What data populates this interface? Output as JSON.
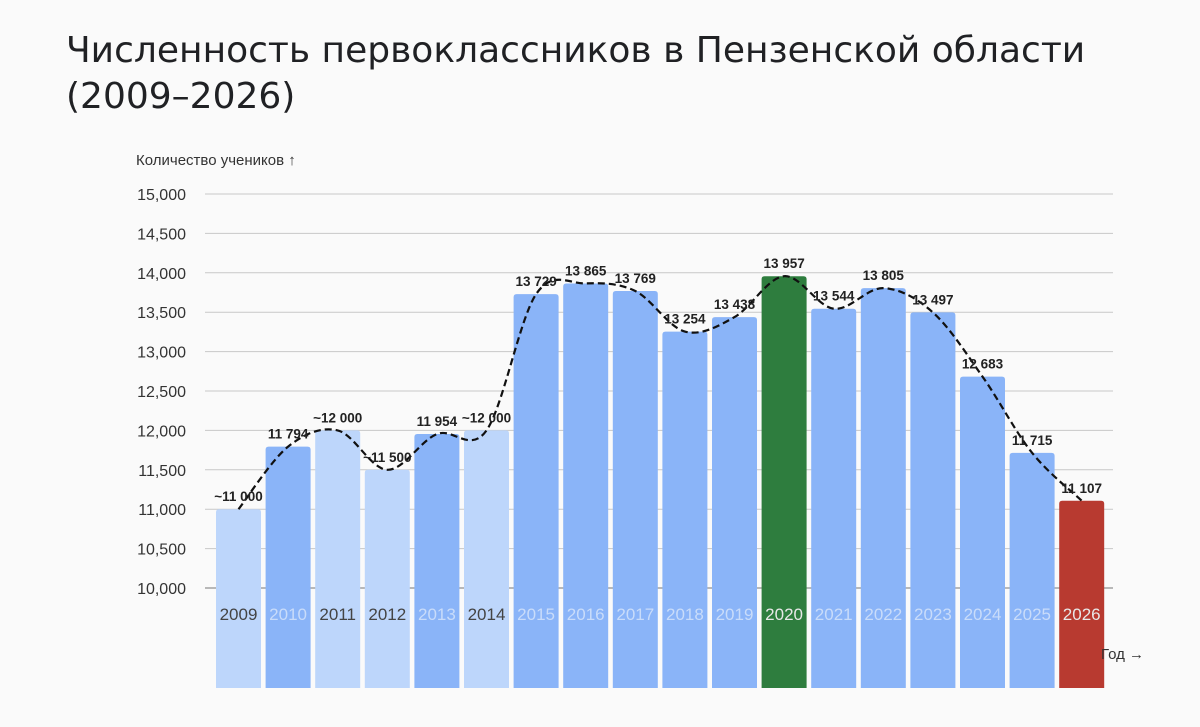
{
  "chart_data": {
    "type": "bar",
    "title": "Численность первоклассников в Пензенской области (2009–2026)",
    "ylabel": "Количество учеников ↑",
    "xlabel": "Год →",
    "ylim": [
      10000,
      15000
    ],
    "yticks": [
      "10,000",
      "10,500",
      "11,000",
      "11,500",
      "12,000",
      "12,500",
      "13,000",
      "13,500",
      "14,000",
      "14,500",
      "15,000"
    ],
    "grid": true,
    "trend_line": "dashed",
    "categories": [
      "2009",
      "2010",
      "2011",
      "2012",
      "2013",
      "2014",
      "2015",
      "2016",
      "2017",
      "2018",
      "2019",
      "2020",
      "2021",
      "2022",
      "2023",
      "2024",
      "2025",
      "2026"
    ],
    "values": [
      11000,
      11794,
      12000,
      11500,
      11954,
      12000,
      13729,
      13865,
      13769,
      13254,
      13438,
      13957,
      13544,
      13805,
      13497,
      12683,
      11715,
      11107
    ],
    "data_labels": [
      "~11 000",
      "11 794",
      "~12 000",
      "~11 500",
      "11 954",
      "~12 000",
      "13 729",
      "13 865",
      "13 769",
      "13 254",
      "13 438",
      "13 957",
      "13 544",
      "13 805",
      "13 497",
      "12 683",
      "11 715",
      "11 107"
    ],
    "colors": {
      "estimated": "#bdd6fb",
      "actual": "#8ab4f8",
      "max": "#2e7d3e",
      "latest": "#b83a30",
      "grid": "#c8c8c8",
      "trend": "#111111"
    },
    "bar_kind": [
      "estimated",
      "actual",
      "estimated",
      "estimated",
      "actual",
      "estimated",
      "actual",
      "actual",
      "actual",
      "actual",
      "actual",
      "max",
      "actual",
      "actual",
      "actual",
      "actual",
      "actual",
      "latest"
    ]
  }
}
